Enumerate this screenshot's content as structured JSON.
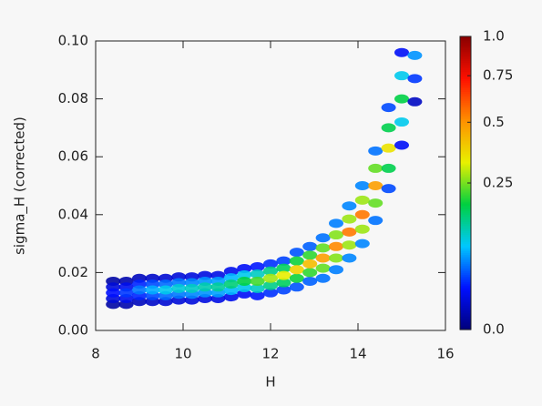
{
  "chart_data": {
    "type": "density",
    "xlabel": "H",
    "ylabel": "sigma_H (corrected)",
    "xlim": [
      8,
      16
    ],
    "ylim": [
      0,
      0.1
    ],
    "xticks": [
      8,
      10,
      12,
      14,
      16
    ],
    "yticks": [
      {
        "value": 0,
        "label": "0.00"
      },
      {
        "value": 0.02,
        "label": "0.02"
      },
      {
        "value": 0.04,
        "label": "0.04"
      },
      {
        "value": 0.06,
        "label": "0.06"
      },
      {
        "value": 0.08,
        "label": "0.08"
      },
      {
        "value": 0.1,
        "label": "0.10"
      }
    ],
    "color_scale": "sqrt",
    "colormap": [
      "#00007a",
      "#0010ff",
      "#00c8ff",
      "#00d040",
      "#e8f000",
      "#ff9000",
      "#ff1000",
      "#8a0000"
    ],
    "clim": [
      0,
      1
    ],
    "cticks": [
      {
        "value": 0,
        "label": "0.0"
      },
      0.25,
      0.5,
      0.75,
      {
        "value": 1,
        "label": "1.0"
      }
    ],
    "points": [
      [
        8.4,
        0.009,
        0.002
      ],
      [
        8.4,
        0.017,
        0.002
      ],
      [
        8.4,
        0.011,
        0.01
      ],
      [
        8.4,
        0.015,
        0.01
      ],
      [
        8.4,
        0.013,
        0.02
      ],
      [
        8.7,
        0.009,
        0.003
      ],
      [
        8.7,
        0.017,
        0.003
      ],
      [
        8.7,
        0.011,
        0.015
      ],
      [
        8.7,
        0.015,
        0.015
      ],
      [
        8.7,
        0.013,
        0.03
      ],
      [
        9.0,
        0.01,
        0.005
      ],
      [
        9.0,
        0.018,
        0.005
      ],
      [
        9.0,
        0.012,
        0.025
      ],
      [
        9.0,
        0.016,
        0.025
      ],
      [
        9.0,
        0.014,
        0.05
      ],
      [
        9.3,
        0.01,
        0.007
      ],
      [
        9.3,
        0.018,
        0.007
      ],
      [
        9.3,
        0.012,
        0.035
      ],
      [
        9.3,
        0.016,
        0.035
      ],
      [
        9.3,
        0.014,
        0.07
      ],
      [
        9.6,
        0.01,
        0.009
      ],
      [
        9.6,
        0.018,
        0.009
      ],
      [
        9.6,
        0.012,
        0.045
      ],
      [
        9.6,
        0.016,
        0.045
      ],
      [
        9.6,
        0.014,
        0.09
      ],
      [
        9.9,
        0.0105,
        0.01
      ],
      [
        9.9,
        0.0185,
        0.01
      ],
      [
        9.9,
        0.0125,
        0.05
      ],
      [
        9.9,
        0.0165,
        0.05
      ],
      [
        9.9,
        0.0145,
        0.1
      ],
      [
        10.2,
        0.0105,
        0.011
      ],
      [
        10.2,
        0.0185,
        0.011
      ],
      [
        10.2,
        0.0125,
        0.055
      ],
      [
        10.2,
        0.0165,
        0.055
      ],
      [
        10.2,
        0.0145,
        0.11
      ],
      [
        10.5,
        0.011,
        0.012
      ],
      [
        10.5,
        0.019,
        0.012
      ],
      [
        10.5,
        0.013,
        0.06
      ],
      [
        10.5,
        0.017,
        0.06
      ],
      [
        10.5,
        0.015,
        0.12
      ],
      [
        10.8,
        0.011,
        0.013
      ],
      [
        10.8,
        0.019,
        0.013
      ],
      [
        10.8,
        0.013,
        0.065
      ],
      [
        10.8,
        0.017,
        0.065
      ],
      [
        10.8,
        0.015,
        0.13
      ],
      [
        11.1,
        0.0116,
        0.015
      ],
      [
        11.1,
        0.0204,
        0.015
      ],
      [
        11.1,
        0.0138,
        0.075
      ],
      [
        11.1,
        0.0182,
        0.075
      ],
      [
        11.1,
        0.016,
        0.15
      ],
      [
        11.4,
        0.0126,
        0.018
      ],
      [
        11.4,
        0.0214,
        0.018
      ],
      [
        11.4,
        0.0148,
        0.09
      ],
      [
        11.4,
        0.0192,
        0.09
      ],
      [
        11.4,
        0.017,
        0.18
      ],
      [
        11.7,
        0.012,
        0.022
      ],
      [
        11.7,
        0.022,
        0.022
      ],
      [
        11.7,
        0.0145,
        0.11
      ],
      [
        11.7,
        0.0195,
        0.11
      ],
      [
        11.7,
        0.017,
        0.22
      ],
      [
        12.0,
        0.013,
        0.028
      ],
      [
        12.0,
        0.023,
        0.028
      ],
      [
        12.0,
        0.0155,
        0.14
      ],
      [
        12.0,
        0.0205,
        0.14
      ],
      [
        12.0,
        0.018,
        0.28
      ],
      [
        12.3,
        0.014,
        0.033
      ],
      [
        12.3,
        0.024,
        0.033
      ],
      [
        12.3,
        0.0165,
        0.165
      ],
      [
        12.3,
        0.0215,
        0.165
      ],
      [
        12.3,
        0.019,
        0.33
      ],
      [
        12.6,
        0.015,
        0.038
      ],
      [
        12.6,
        0.027,
        0.038
      ],
      [
        12.6,
        0.018,
        0.19
      ],
      [
        12.6,
        0.024,
        0.19
      ],
      [
        12.6,
        0.021,
        0.38
      ],
      [
        12.9,
        0.017,
        0.042
      ],
      [
        12.9,
        0.029,
        0.042
      ],
      [
        12.9,
        0.02,
        0.21
      ],
      [
        12.9,
        0.026,
        0.21
      ],
      [
        12.9,
        0.023,
        0.42
      ],
      [
        13.2,
        0.018,
        0.048
      ],
      [
        13.2,
        0.032,
        0.048
      ],
      [
        13.2,
        0.0215,
        0.24
      ],
      [
        13.2,
        0.0285,
        0.24
      ],
      [
        13.2,
        0.025,
        0.48
      ],
      [
        13.5,
        0.021,
        0.052
      ],
      [
        13.5,
        0.037,
        0.052
      ],
      [
        13.5,
        0.025,
        0.26
      ],
      [
        13.5,
        0.033,
        0.26
      ],
      [
        13.5,
        0.029,
        0.52
      ],
      [
        13.8,
        0.025,
        0.055
      ],
      [
        13.8,
        0.043,
        0.055
      ],
      [
        13.8,
        0.0295,
        0.275
      ],
      [
        13.8,
        0.0385,
        0.275
      ],
      [
        13.8,
        0.034,
        0.55
      ],
      [
        14.1,
        0.03,
        0.055
      ],
      [
        14.1,
        0.05,
        0.055
      ],
      [
        14.1,
        0.035,
        0.275
      ],
      [
        14.1,
        0.045,
        0.275
      ],
      [
        14.1,
        0.04,
        0.55
      ],
      [
        14.4,
        0.038,
        0.048
      ],
      [
        14.4,
        0.062,
        0.048
      ],
      [
        14.4,
        0.044,
        0.24
      ],
      [
        14.4,
        0.056,
        0.24
      ],
      [
        14.4,
        0.05,
        0.48
      ],
      [
        14.7,
        0.049,
        0.035
      ],
      [
        14.7,
        0.077,
        0.035
      ],
      [
        14.7,
        0.056,
        0.175
      ],
      [
        14.7,
        0.07,
        0.175
      ],
      [
        14.7,
        0.063,
        0.35
      ],
      [
        15.0,
        0.064,
        0.018
      ],
      [
        15.0,
        0.096,
        0.018
      ],
      [
        15.0,
        0.072,
        0.09
      ],
      [
        15.0,
        0.088,
        0.09
      ],
      [
        15.0,
        0.08,
        0.18
      ],
      [
        15.3,
        0.079,
        0.006
      ],
      [
        15.3,
        0.087,
        0.03
      ],
      [
        15.3,
        0.095,
        0.06
      ]
    ]
  }
}
